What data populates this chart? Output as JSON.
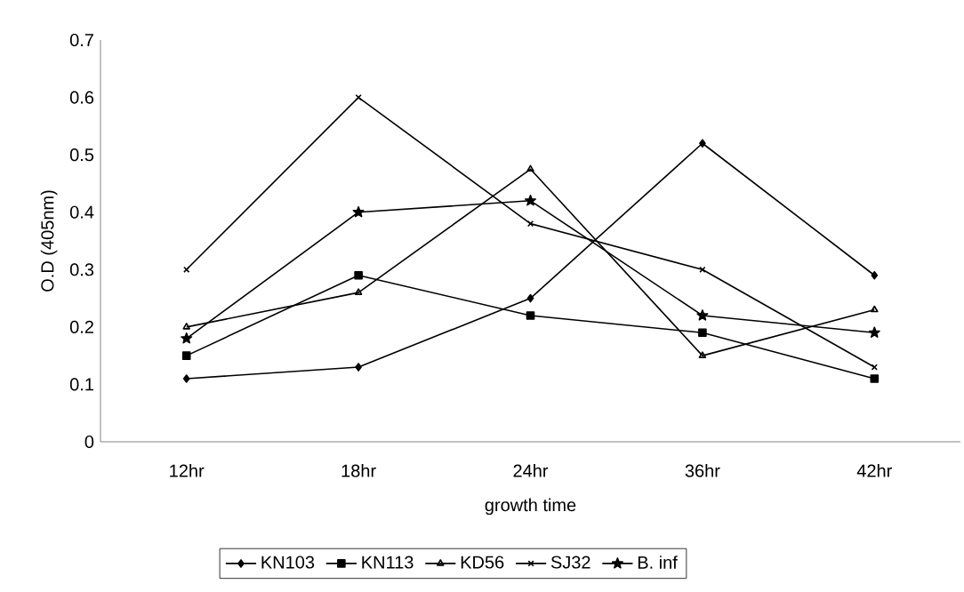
{
  "chart_data": {
    "type": "line",
    "xlabel": "growth time",
    "ylabel": "O.D (405nm)",
    "categories": [
      "12hr",
      "18hr",
      "24hr",
      "36hr",
      "42hr"
    ],
    "series": [
      {
        "name": "KN103",
        "color": "#000000",
        "marker": "diamond",
        "values": [
          0.11,
          0.13,
          0.25,
          0.52,
          0.29
        ]
      },
      {
        "name": "KN113",
        "color": "#000000",
        "marker": "square",
        "values": [
          0.15,
          0.29,
          0.22,
          0.19,
          0.11
        ]
      },
      {
        "name": "KD56",
        "color": "#000000",
        "marker": "triangle",
        "values": [
          0.2,
          0.26,
          0.475,
          0.15,
          0.23
        ]
      },
      {
        "name": "SJ32",
        "color": "#000000",
        "marker": "cross",
        "values": [
          0.3,
          0.6,
          0.38,
          0.3,
          0.13
        ]
      },
      {
        "name": "B. inf",
        "color": "#000000",
        "marker": "star",
        "values": [
          0.18,
          0.4,
          0.42,
          0.22,
          0.19
        ]
      }
    ],
    "ylim": [
      0,
      0.7
    ],
    "yticks": [
      0,
      0.1,
      0.2,
      0.3,
      0.4,
      0.5,
      0.6,
      0.7
    ],
    "grid": false,
    "legend": "bottom",
    "line_style": "solid"
  }
}
